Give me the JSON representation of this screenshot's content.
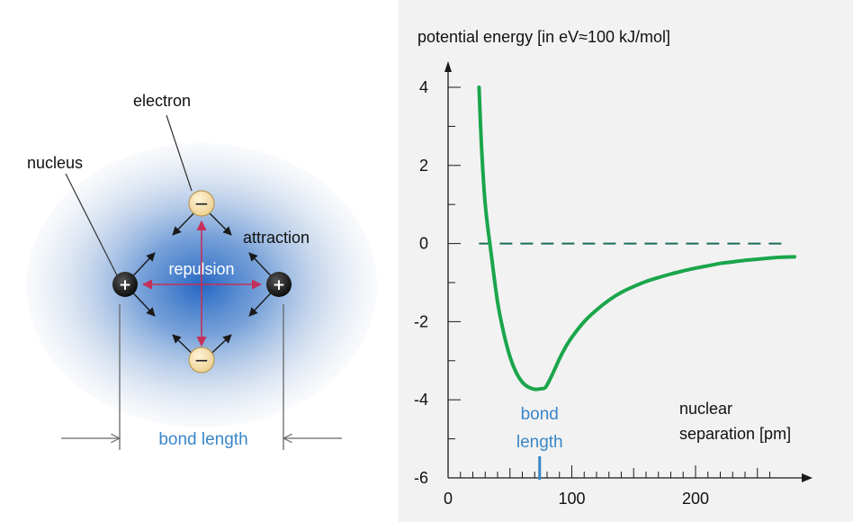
{
  "diagram": {
    "labels": {
      "electron": "electron",
      "nucleus": "nucleus",
      "attraction": "attraction",
      "repulsion": "repulsion",
      "bond_length": "bond length"
    },
    "symbols": {
      "plus": "+",
      "minus": "−"
    },
    "colors": {
      "cloud": "#5b86c4",
      "nucleus": "#1a1a1a",
      "electron": "#f8e4b0",
      "repulsion_arrow": "#c4305a",
      "bond_length_text": "#3a86c8"
    }
  },
  "chart_data": {
    "type": "line",
    "title": "potential energy  [in eV≈100 kJ/mol]",
    "xlabel": "nuclear separation [pm]",
    "xlabel_lines": [
      "nuclear",
      "separation [pm]"
    ],
    "ylabel": "",
    "xlim": [
      0,
      280
    ],
    "ylim": [
      -6,
      4.8
    ],
    "x_ticks": [
      0,
      100,
      200
    ],
    "y_ticks": [
      4,
      2,
      0,
      -2,
      -4,
      -6
    ],
    "x_minor_step": 10,
    "y_minor_step": 1,
    "marker": {
      "x": 74,
      "label_lines": [
        "bond",
        "length"
      ],
      "color": "#3a86c8"
    },
    "zero_line": {
      "y": 0,
      "x_from": 0,
      "x_to": 270,
      "style": "dashed",
      "color": "#1a6b5a"
    },
    "series": [
      {
        "color": "#1aa64b",
        "x": [
          25,
          27,
          30,
          35,
          40,
          45,
          50,
          55,
          60,
          65,
          70,
          75,
          78,
          80,
          85,
          90,
          95,
          100,
          110,
          120,
          130,
          140,
          150,
          160,
          170,
          180,
          190,
          200,
          210,
          220,
          230,
          240,
          250,
          260,
          270,
          280
        ],
        "y": [
          4.0,
          2.5,
          1.0,
          -0.3,
          -1.5,
          -2.3,
          -2.9,
          -3.3,
          -3.55,
          -3.68,
          -3.73,
          -3.72,
          -3.7,
          -3.62,
          -3.3,
          -2.95,
          -2.65,
          -2.4,
          -2.0,
          -1.7,
          -1.45,
          -1.25,
          -1.1,
          -0.97,
          -0.87,
          -0.78,
          -0.7,
          -0.63,
          -0.57,
          -0.51,
          -0.47,
          -0.43,
          -0.4,
          -0.37,
          -0.35,
          -0.34
        ]
      }
    ]
  }
}
